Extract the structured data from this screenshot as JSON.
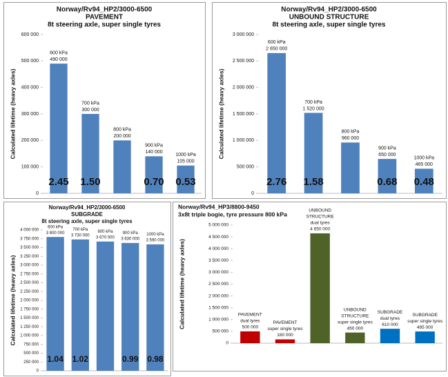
{
  "chart_data": [
    {
      "type": "bar",
      "title": "Norway/Rv94_HP2/3000-6500",
      "subtitle": [
        "PAVEMENT",
        "8t steering axle, super single tyres"
      ],
      "ylabel": "Calculated  lifetime  (heavy axles)",
      "categories": [
        "600 kPa",
        "700 kPa",
        "800 kPa",
        "900 kPa",
        "1000 kPa"
      ],
      "values": [
        490000,
        300000,
        200000,
        140000,
        105000
      ],
      "value_labels": [
        "490 000",
        "300 000",
        "200 000",
        "140 000",
        "105 000"
      ],
      "annotations": [
        "2.45",
        "1.50",
        null,
        "0.70",
        "0.53"
      ],
      "color": "#4f81bd",
      "ylim": [
        0,
        600000
      ],
      "yticks": [
        0,
        {
          "value": 100000,
          "label": "100 000"
        },
        {
          "value": 200000,
          "label": "200 000"
        },
        {
          "value": 300000,
          "label": "300 000"
        },
        {
          "value": 400000,
          "label": "400 000"
        },
        {
          "value": 500000,
          "label": "500 000"
        },
        {
          "value": 600000,
          "label": "600 000"
        }
      ]
    },
    {
      "type": "bar",
      "title": "Norway/Rv94_HP2/3000-6500",
      "subtitle": [
        "UNBOUND STRUCTURE",
        "8t steering axle, super single tyres"
      ],
      "ylabel": "Calculated  lifetime  (heavy axles)",
      "categories": [
        "600 kPa",
        "700 kPa",
        "800 kPa",
        "900 kPa",
        "1000 kPa"
      ],
      "values": [
        2650000,
        1520000,
        960000,
        650000,
        465000
      ],
      "value_labels": [
        "2 650 000",
        "1 520 000",
        "960 000",
        "650 000",
        "465 000"
      ],
      "annotations": [
        "2.76",
        "1.58",
        null,
        "0.68",
        "0.48"
      ],
      "color": "#4f81bd",
      "ylim": [
        0,
        3000000
      ],
      "yticks": [
        0,
        {
          "value": 500000,
          "label": "500 000"
        },
        {
          "value": 1000000,
          "label": "1 000 000"
        },
        {
          "value": 1500000,
          "label": "1 500 000"
        },
        {
          "value": 2000000,
          "label": "2 000 000"
        },
        {
          "value": 2500000,
          "label": "2 500 000"
        },
        {
          "value": 3000000,
          "label": "3 000 000"
        }
      ]
    },
    {
      "type": "bar",
      "title": "Norway/Rv94_HP2/3000-6500",
      "subtitle": [
        "SUBGRADE",
        "8t steering axle, super single tyres"
      ],
      "ylabel": "Calculated  lifetime  (heavy axles)",
      "categories": [
        "600 kPa",
        "700 kPa",
        "800 kPa",
        "900 kPa",
        "1000 kPa"
      ],
      "values": [
        3800000,
        3730000,
        3670000,
        3630000,
        3590000
      ],
      "value_labels": [
        "3 800 000",
        "3 730 000",
        "3 670 000",
        "3 630 000",
        "3 590 000"
      ],
      "annotations": [
        "1.04",
        "1.02",
        null,
        "0.99",
        "0.98"
      ],
      "color": "#4f81bd",
      "ylim": [
        0,
        4000000
      ],
      "yticks": [
        0,
        {
          "value": 250000,
          "label": "250 000"
        },
        {
          "value": 500000,
          "label": "500 000"
        },
        {
          "value": 750000,
          "label": "750 000"
        },
        {
          "value": 1000000,
          "label": "1 000 000"
        },
        {
          "value": 1250000,
          "label": "1 250 000"
        },
        {
          "value": 1500000,
          "label": "1 500 000"
        },
        {
          "value": 1750000,
          "label": "1 750 000"
        },
        {
          "value": 2000000,
          "label": "2 000 000"
        },
        {
          "value": 2250000,
          "label": "2 250 000"
        },
        {
          "value": 2500000,
          "label": "2 500 000"
        },
        {
          "value": 2750000,
          "label": "2 750 000"
        },
        {
          "value": 3000000,
          "label": "3 000 000"
        },
        {
          "value": 3250000,
          "label": "3 250 000"
        },
        {
          "value": 3500000,
          "label": "3 500 000"
        },
        {
          "value": 3750000,
          "label": "3 750 000"
        },
        {
          "value": 4000000,
          "label": "4 000 000"
        }
      ]
    },
    {
      "type": "bar",
      "title": "Norway/Rv94_HP3/8800-9450",
      "subtitle": [
        "3x8t triple bogie, tyre pressure 800 kPa"
      ],
      "ylabel": "Calculated  lifetime  (heavy axles)",
      "categories": [
        [
          "PAVEMENT",
          "dual tyres"
        ],
        [
          "PAVEMENT",
          "super single tyres"
        ],
        [
          "UNBOUND",
          "STRUCTURE",
          "dual tyres"
        ],
        [
          "UNBOUND",
          "STRUCTURE",
          "super single tyres"
        ],
        [
          "SUBGRADE",
          "dual tyres"
        ],
        [
          "SUBGRADE",
          "super single tyres"
        ]
      ],
      "values": [
        500000,
        160000,
        4650000,
        450000,
        610000,
        495000
      ],
      "value_labels": [
        "500 000",
        "160 000",
        "4 650 000",
        "450 000",
        "610 000",
        "495 000"
      ],
      "colors": [
        "#c00000",
        "#c00000",
        "#4f6228",
        "#4f6228",
        "#0070c0",
        "#0070c0"
      ],
      "ylim": [
        0,
        5000000
      ],
      "yticks": [
        0,
        {
          "value": 500000,
          "label": "500 000"
        },
        {
          "value": 1000000,
          "label": "1 000 000"
        },
        {
          "value": 1500000,
          "label": "1 500 000"
        },
        {
          "value": 2000000,
          "label": "2 000 000"
        },
        {
          "value": 2500000,
          "label": "2 500 000"
        },
        {
          "value": 3000000,
          "label": "3 000 000"
        },
        {
          "value": 3500000,
          "label": "3 500 000"
        },
        {
          "value": 4000000,
          "label": "4 000 000"
        },
        {
          "value": 4500000,
          "label": "4 500 000"
        },
        {
          "value": 5000000,
          "label": "5 000 000"
        }
      ]
    }
  ]
}
